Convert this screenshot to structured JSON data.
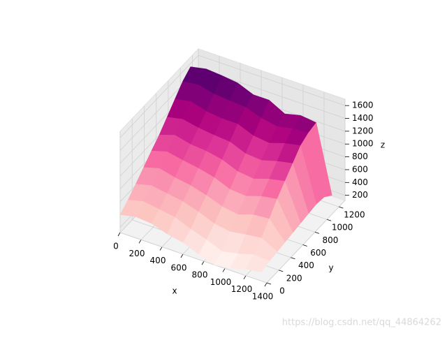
{
  "chart_data": {
    "type": "surface3d",
    "x_label": "x",
    "y_label": "y",
    "z_label": "z",
    "x": [
      0,
      150,
      300,
      450,
      600,
      750,
      900,
      1050,
      1200,
      1350
    ],
    "y": [
      0,
      130,
      260,
      390,
      520,
      650,
      780,
      910,
      1040,
      1170
    ],
    "z": [
      [
        400,
        450,
        430,
        350,
        300,
        200,
        120,
        150,
        220,
        260
      ],
      [
        500,
        560,
        520,
        480,
        380,
        300,
        200,
        250,
        320,
        300
      ],
      [
        620,
        680,
        640,
        600,
        520,
        420,
        380,
        420,
        450,
        320
      ],
      [
        750,
        820,
        760,
        720,
        650,
        560,
        520,
        600,
        620,
        340
      ],
      [
        880,
        950,
        900,
        860,
        800,
        700,
        680,
        760,
        800,
        360
      ],
      [
        1000,
        1080,
        1020,
        1000,
        950,
        850,
        820,
        900,
        950,
        380
      ],
      [
        1150,
        1200,
        1150,
        1120,
        1100,
        1000,
        980,
        1050,
        1100,
        400
      ],
      [
        1300,
        1350,
        1280,
        1250,
        1250,
        1150,
        1120,
        1200,
        1250,
        420
      ],
      [
        1450,
        1480,
        1420,
        1400,
        1380,
        1300,
        1250,
        1300,
        1320,
        400
      ],
      [
        1550,
        1600,
        1580,
        1550,
        1450,
        1450,
        1320,
        1380,
        1350,
        300
      ]
    ],
    "colormap": [
      "#fff7f3",
      "#fde0dd",
      "#fcc5c0",
      "#fa9fb5",
      "#f768a1",
      "#dd3497",
      "#ae017e",
      "#7a0177",
      "#49006a"
    ],
    "xlim": [
      0,
      1400
    ],
    "ylim": [
      0,
      1300
    ],
    "zlim": [
      120,
      1700
    ],
    "xticks": [
      0,
      200,
      400,
      600,
      800,
      1000,
      1200,
      1400
    ],
    "yticks": [
      0,
      200,
      400,
      600,
      800,
      1000,
      1200
    ],
    "zticks": [
      200,
      400,
      600,
      800,
      1000,
      1200,
      1400,
      1600
    ],
    "grid": true
  },
  "watermark": "https://blog.csdn.net/qq_44864262"
}
